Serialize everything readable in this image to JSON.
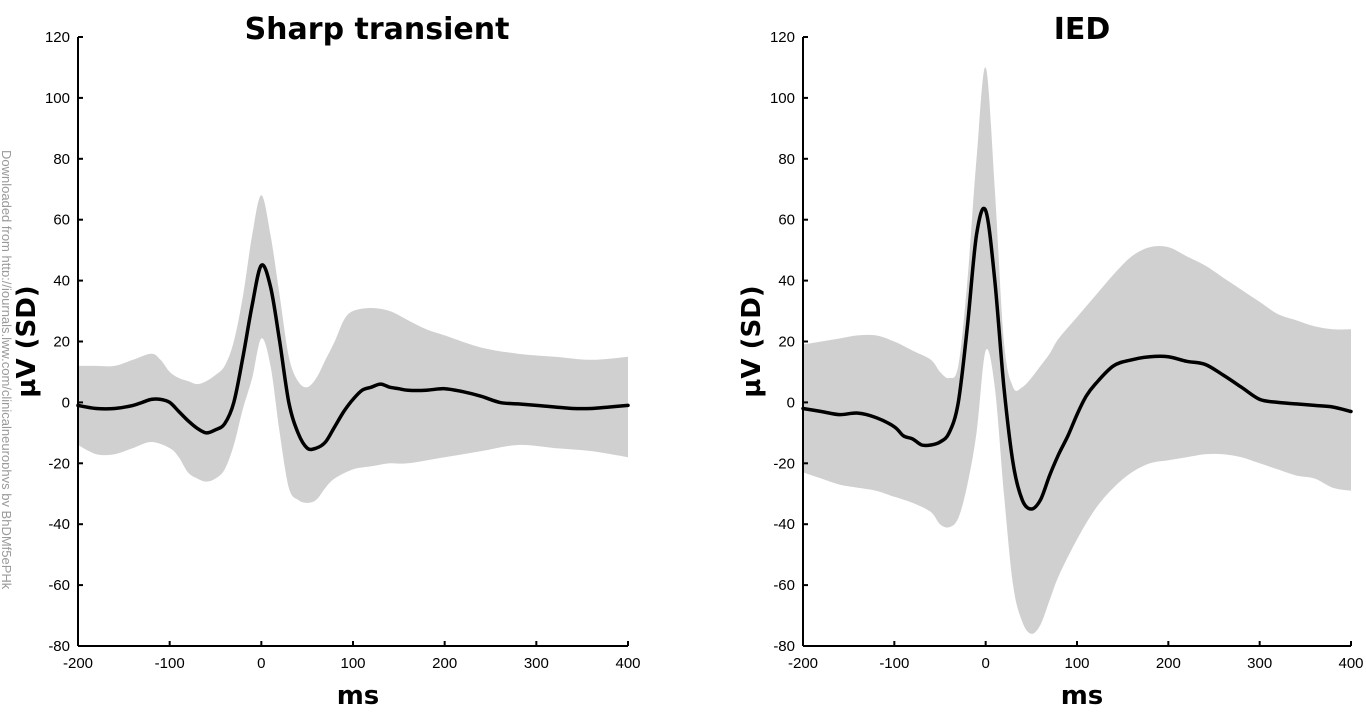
{
  "watermark": "Downloaded from http://journals.lww.com/clinicalneurophys by BhDMf5ePHk",
  "chart_data": [
    {
      "type": "line",
      "title": "Sharp transient",
      "xlabel": "ms",
      "ylabel": "µV (SD)",
      "xlim": [
        -200,
        400
      ],
      "ylim": [
        -80,
        120
      ],
      "xticks": [
        -200,
        -100,
        0,
        100,
        200,
        300,
        400
      ],
      "yticks": [
        -80,
        -60,
        -40,
        -20,
        0,
        20,
        40,
        60,
        80,
        100,
        120
      ],
      "grid": false,
      "colors": {
        "line": "#000000",
        "band": "#d0d0d0"
      },
      "series": [
        {
          "kind": "mean",
          "x": [
            -200,
            -180,
            -160,
            -140,
            -130,
            -120,
            -110,
            -100,
            -90,
            -80,
            -70,
            -60,
            -50,
            -40,
            -30,
            -20,
            -10,
            0,
            10,
            20,
            30,
            40,
            50,
            60,
            70,
            80,
            90,
            100,
            110,
            120,
            130,
            140,
            150,
            160,
            180,
            200,
            220,
            240,
            260,
            280,
            300,
            320,
            340,
            360,
            380,
            400
          ],
          "y": [
            -1,
            -2,
            -2,
            -1,
            0,
            1,
            1,
            0,
            -3,
            -6,
            -8.5,
            -10,
            -9,
            -7,
            0,
            15,
            32,
            45,
            38,
            20,
            0,
            -10,
            -15,
            -15,
            -13,
            -8,
            -3,
            1,
            4,
            5,
            6,
            5,
            4.5,
            4,
            4,
            4.5,
            3.5,
            2,
            0,
            -0.5,
            -1,
            -1.5,
            -2,
            -2,
            -1.5,
            -1
          ]
        },
        {
          "kind": "upper_sd",
          "x": [
            -200,
            -180,
            -160,
            -140,
            -120,
            -110,
            -100,
            -90,
            -80,
            -70,
            -60,
            -50,
            -40,
            -30,
            -20,
            -10,
            0,
            10,
            20,
            30,
            40,
            50,
            60,
            70,
            80,
            90,
            100,
            120,
            140,
            160,
            180,
            200,
            240,
            280,
            320,
            360,
            400
          ],
          "y": [
            12,
            12,
            12,
            14,
            16,
            14,
            10,
            8,
            7,
            6,
            7,
            9,
            12,
            20,
            35,
            55,
            68,
            55,
            35,
            15,
            7,
            5,
            8,
            14,
            20,
            27,
            30,
            31,
            30,
            27,
            24,
            22,
            18,
            16,
            15,
            14,
            15
          ]
        },
        {
          "kind": "lower_sd",
          "x": [
            -200,
            -180,
            -160,
            -140,
            -120,
            -100,
            -90,
            -80,
            -70,
            -60,
            -50,
            -40,
            -30,
            -20,
            -10,
            0,
            10,
            20,
            30,
            40,
            50,
            60,
            70,
            80,
            100,
            120,
            140,
            160,
            200,
            240,
            280,
            320,
            360,
            400
          ],
          "y": [
            -14,
            -17,
            -17,
            -15,
            -13,
            -15,
            -18,
            -23,
            -25,
            -26,
            -25,
            -22,
            -14,
            -2,
            8,
            21,
            12,
            -10,
            -28,
            -32,
            -33,
            -32,
            -28,
            -25,
            -22,
            -21,
            -20,
            -20,
            -18,
            -16,
            -14,
            -15,
            -16,
            -18
          ]
        }
      ]
    },
    {
      "type": "line",
      "title": "IED",
      "xlabel": "ms",
      "ylabel": "µV (SD)",
      "xlim": [
        -200,
        400
      ],
      "ylim": [
        -80,
        120
      ],
      "xticks": [
        -200,
        -100,
        0,
        100,
        200,
        300,
        400
      ],
      "yticks": [
        -80,
        -60,
        -40,
        -20,
        0,
        20,
        40,
        60,
        80,
        100,
        120
      ],
      "grid": false,
      "colors": {
        "line": "#000000",
        "band": "#d0d0d0"
      },
      "series": [
        {
          "kind": "mean",
          "x": [
            -200,
            -180,
            -160,
            -140,
            -120,
            -100,
            -90,
            -80,
            -70,
            -60,
            -50,
            -40,
            -30,
            -20,
            -10,
            0,
            10,
            20,
            30,
            40,
            50,
            60,
            70,
            80,
            90,
            100,
            110,
            120,
            140,
            160,
            180,
            200,
            220,
            240,
            260,
            280,
            300,
            320,
            340,
            360,
            380,
            400
          ],
          "y": [
            -2,
            -3,
            -4,
            -3.5,
            -5,
            -8,
            -11,
            -12,
            -14,
            -14,
            -13,
            -10,
            0,
            25,
            55,
            63,
            40,
            5,
            -20,
            -32,
            -35,
            -32,
            -24,
            -17,
            -11,
            -4,
            2,
            6,
            12,
            14,
            15,
            15,
            13.5,
            12.5,
            9,
            5,
            1,
            0,
            -0.5,
            -1,
            -1.5,
            -3
          ]
        },
        {
          "kind": "upper_sd",
          "x": [
            -200,
            -180,
            -160,
            -140,
            -120,
            -100,
            -80,
            -60,
            -50,
            -40,
            -30,
            -20,
            -10,
            0,
            10,
            20,
            30,
            40,
            50,
            60,
            70,
            80,
            100,
            120,
            140,
            160,
            180,
            200,
            220,
            240,
            260,
            280,
            300,
            320,
            340,
            360,
            380,
            400
          ],
          "y": [
            19,
            20,
            21,
            22,
            22,
            20,
            17,
            14,
            10,
            8,
            12,
            40,
            80,
            110,
            70,
            20,
            5,
            5,
            8,
            12,
            16,
            21,
            28,
            35,
            42,
            48,
            51,
            51,
            48,
            45,
            41,
            37,
            33,
            29,
            27,
            25,
            24,
            24
          ]
        },
        {
          "kind": "lower_sd",
          "x": [
            -200,
            -180,
            -160,
            -140,
            -120,
            -100,
            -80,
            -60,
            -50,
            -40,
            -30,
            -20,
            -10,
            0,
            10,
            20,
            30,
            40,
            50,
            60,
            70,
            80,
            100,
            120,
            140,
            160,
            180,
            200,
            220,
            240,
            260,
            280,
            300,
            320,
            340,
            360,
            380,
            400
          ],
          "y": [
            -23,
            -25,
            -27,
            -28,
            -29,
            -31,
            -33,
            -36,
            -40,
            -41,
            -38,
            -27,
            -10,
            17,
            5,
            -30,
            -60,
            -72,
            -76,
            -73,
            -65,
            -57,
            -45,
            -35,
            -28,
            -23,
            -20,
            -19,
            -18,
            -17,
            -17,
            -18,
            -20,
            -22,
            -24,
            -25,
            -28,
            -29
          ]
        }
      ]
    }
  ]
}
